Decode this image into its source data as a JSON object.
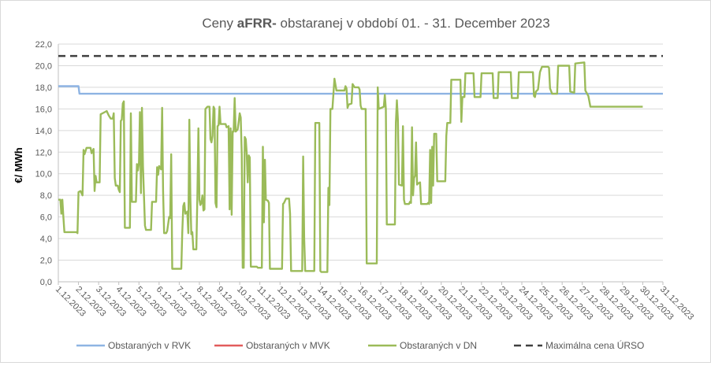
{
  "chart_data": {
    "type": "line",
    "title_prefix": "Ceny ",
    "title_bold": "aFRR-",
    "title_suffix": " obstaranej v období 01. - 31. December 2023",
    "ylabel": "€/ MWh",
    "xlabel": "",
    "ylim": [
      0,
      22
    ],
    "ytick_step": 2,
    "y_tick_labels": [
      "0,0",
      "2,0",
      "4,0",
      "6,0",
      "8,0",
      "10,0",
      "12,0",
      "14,0",
      "16,0",
      "18,0",
      "20,0",
      "22,0"
    ],
    "x_tick_labels": [
      "1.12.2023",
      "2.12.2023",
      "3.12.2023",
      "4.12.2023",
      "5.12.2023",
      "6.12.2023",
      "7.12.2023",
      "8.12.2023",
      "9.12.2023",
      "10.12.2023",
      "11.12.2023",
      "12.12.2023",
      "13.12.2023",
      "14.12.2023",
      "15.12.2023",
      "16.12.2023",
      "17.12.2023",
      "18.12.2023",
      "19.12.2023",
      "20.12.2023",
      "21.12.2023",
      "22.12.2023",
      "23.12.2023",
      "24.12.2023",
      "25.12.2023",
      "26.12.2023",
      "27.12.2023",
      "28.12.2023",
      "29.12.2023",
      "30.12.2023",
      "31.12.2023"
    ],
    "x_range_days": [
      0,
      30
    ],
    "grid": true,
    "legend_position": "bottom",
    "series": [
      {
        "name": "Obstaraných v RVK",
        "color": "#8eb4e3",
        "style": "solid",
        "points": [
          [
            0,
            18.1
          ],
          [
            1.0,
            18.1
          ],
          [
            1.05,
            17.4
          ],
          [
            30,
            17.4
          ]
        ]
      },
      {
        "name": "Obstaraných v MVK",
        "color": "#e25c5c",
        "style": "solid",
        "points": []
      },
      {
        "name": "Obstaraných v DN",
        "color": "#9bbb59",
        "style": "solid",
        "points": [
          [
            0,
            7.6
          ],
          [
            0.1,
            7.6
          ],
          [
            0.15,
            6.3
          ],
          [
            0.2,
            7.6
          ],
          [
            0.25,
            6.0
          ],
          [
            0.3,
            4.6
          ],
          [
            0.9,
            4.6
          ],
          [
            0.95,
            4.5
          ],
          [
            1.0,
            8.3
          ],
          [
            1.1,
            8.4
          ],
          [
            1.2,
            8.0
          ],
          [
            1.25,
            12.2
          ],
          [
            1.3,
            11.8
          ],
          [
            1.4,
            12.4
          ],
          [
            1.6,
            12.4
          ],
          [
            1.65,
            11.9
          ],
          [
            1.75,
            12.3
          ],
          [
            1.8,
            8.4
          ],
          [
            1.85,
            9.8
          ],
          [
            1.9,
            9.2
          ],
          [
            2.05,
            9.2
          ],
          [
            2.1,
            15.5
          ],
          [
            2.3,
            15.7
          ],
          [
            2.4,
            15.8
          ],
          [
            2.5,
            15.4
          ],
          [
            2.6,
            15.1
          ],
          [
            2.7,
            15.1
          ],
          [
            2.75,
            15.6
          ],
          [
            2.8,
            9.6
          ],
          [
            2.85,
            8.9
          ],
          [
            2.95,
            8.9
          ],
          [
            3.0,
            8.5
          ],
          [
            3.05,
            8.3
          ],
          [
            3.1,
            14.9
          ],
          [
            3.15,
            15.0
          ],
          [
            3.2,
            16.5
          ],
          [
            3.25,
            16.7
          ],
          [
            3.3,
            5.0
          ],
          [
            3.55,
            5.0
          ],
          [
            3.6,
            15.6
          ],
          [
            3.65,
            7.4
          ],
          [
            3.85,
            7.4
          ],
          [
            3.9,
            10.9
          ],
          [
            3.95,
            10.3
          ],
          [
            4.0,
            11.0
          ],
          [
            4.05,
            15.7
          ],
          [
            4.1,
            8.2
          ],
          [
            4.15,
            16.1
          ],
          [
            4.2,
            10.7
          ],
          [
            4.3,
            5.2
          ],
          [
            4.35,
            4.8
          ],
          [
            4.6,
            4.8
          ],
          [
            4.65,
            7.4
          ],
          [
            4.85,
            7.4
          ],
          [
            4.9,
            10.6
          ],
          [
            4.95,
            9.9
          ],
          [
            5.0,
            10.7
          ],
          [
            5.05,
            10.6
          ],
          [
            5.1,
            10.4
          ],
          [
            5.15,
            16.1
          ],
          [
            5.2,
            8.4
          ],
          [
            5.25,
            4.5
          ],
          [
            5.35,
            4.5
          ],
          [
            5.4,
            4.7
          ],
          [
            5.5,
            6.0
          ],
          [
            5.55,
            5.9
          ],
          [
            5.6,
            11.8
          ],
          [
            5.65,
            1.2
          ],
          [
            6.1,
            1.2
          ],
          [
            6.15,
            4.5
          ],
          [
            6.2,
            7.0
          ],
          [
            6.25,
            7.3
          ],
          [
            6.3,
            6.3
          ],
          [
            6.4,
            6.5
          ],
          [
            6.45,
            4.5
          ],
          [
            6.5,
            15.0
          ],
          [
            6.55,
            7.8
          ],
          [
            6.6,
            4.4
          ],
          [
            6.65,
            4.6
          ],
          [
            6.7,
            3.0
          ],
          [
            6.85,
            3.0
          ],
          [
            6.9,
            8.0
          ],
          [
            6.95,
            14.2
          ],
          [
            7.0,
            7.6
          ],
          [
            7.05,
            7.1
          ],
          [
            7.1,
            7.3
          ],
          [
            7.15,
            8.0
          ],
          [
            7.2,
            6.6
          ],
          [
            7.25,
            6.7
          ],
          [
            7.3,
            16.0
          ],
          [
            7.4,
            16.2
          ],
          [
            7.5,
            16.2
          ],
          [
            7.55,
            13.2
          ],
          [
            7.6,
            12.9
          ],
          [
            7.65,
            13.5
          ],
          [
            7.7,
            16.2
          ],
          [
            7.75,
            16.0
          ],
          [
            7.8,
            7.3
          ],
          [
            7.85,
            6.9
          ],
          [
            7.9,
            14.4
          ],
          [
            7.95,
            14.5
          ],
          [
            8.0,
            16.2
          ],
          [
            8.05,
            14.6
          ],
          [
            8.3,
            14.6
          ],
          [
            8.35,
            14.3
          ],
          [
            8.45,
            14.4
          ],
          [
            8.5,
            6.7
          ],
          [
            8.55,
            14.2
          ],
          [
            8.6,
            6.2
          ],
          [
            8.65,
            13.9
          ],
          [
            8.7,
            13.9
          ],
          [
            8.75,
            17.0
          ],
          [
            8.8,
            13.9
          ],
          [
            8.9,
            14.1
          ],
          [
            8.95,
            14.8
          ],
          [
            9.0,
            15.6
          ],
          [
            9.05,
            15.2
          ],
          [
            9.1,
            11.8
          ],
          [
            9.15,
            1.3
          ],
          [
            9.2,
            1.3
          ],
          [
            9.25,
            13.4
          ],
          [
            9.3,
            13.2
          ],
          [
            9.35,
            11.9
          ],
          [
            9.4,
            9.2
          ],
          [
            9.45,
            11.7
          ],
          [
            9.5,
            11.5
          ],
          [
            9.55,
            1.4
          ],
          [
            9.85,
            1.4
          ],
          [
            9.9,
            1.3
          ],
          [
            10.1,
            1.3
          ],
          [
            10.15,
            12.5
          ],
          [
            10.2,
            5.5
          ],
          [
            10.25,
            11.3
          ],
          [
            10.3,
            7.6
          ],
          [
            10.4,
            7.5
          ],
          [
            10.45,
            7.3
          ],
          [
            10.5,
            1.2
          ],
          [
            11.1,
            1.2
          ],
          [
            11.15,
            7.2
          ],
          [
            11.2,
            7.3
          ],
          [
            11.3,
            7.7
          ],
          [
            11.45,
            7.7
          ],
          [
            11.5,
            6.3
          ],
          [
            11.55,
            1.0
          ],
          [
            12.1,
            1.0
          ],
          [
            12.15,
            11.6
          ],
          [
            12.2,
            4.0
          ],
          [
            12.25,
            1.0
          ],
          [
            12.7,
            1.0
          ],
          [
            12.75,
            14.7
          ],
          [
            12.95,
            14.7
          ],
          [
            13.0,
            1.0
          ],
          [
            13.05,
            0.9
          ],
          [
            13.35,
            0.9
          ],
          [
            13.4,
            8.7
          ],
          [
            13.45,
            7.1
          ],
          [
            13.5,
            16.0
          ],
          [
            13.6,
            16.0
          ],
          [
            13.7,
            18.8
          ],
          [
            13.8,
            17.7
          ],
          [
            14.2,
            17.7
          ],
          [
            14.25,
            18.1
          ],
          [
            14.3,
            17.9
          ],
          [
            14.35,
            16.1
          ],
          [
            14.4,
            16.4
          ],
          [
            14.55,
            16.5
          ],
          [
            14.6,
            18.3
          ],
          [
            14.7,
            18.0
          ],
          [
            14.9,
            18.0
          ],
          [
            14.95,
            17.8
          ],
          [
            15.0,
            16.3
          ],
          [
            15.05,
            16.0
          ],
          [
            15.25,
            16.0
          ],
          [
            15.3,
            1.7
          ],
          [
            15.8,
            1.7
          ],
          [
            15.85,
            18.0
          ],
          [
            15.9,
            16.0
          ],
          [
            16.15,
            16.2
          ],
          [
            16.2,
            17.3
          ],
          [
            16.25,
            16.0
          ],
          [
            16.3,
            5.3
          ],
          [
            16.7,
            5.3
          ],
          [
            16.75,
            14.7
          ],
          [
            16.8,
            16.8
          ],
          [
            16.85,
            15.0
          ],
          [
            16.9,
            9.0
          ],
          [
            17.05,
            8.9
          ],
          [
            17.1,
            14.4
          ],
          [
            17.15,
            7.6
          ],
          [
            17.2,
            7.2
          ],
          [
            17.4,
            7.2
          ],
          [
            17.45,
            7.4
          ],
          [
            17.5,
            7.3
          ],
          [
            17.55,
            14.3
          ],
          [
            17.6,
            8.0
          ],
          [
            17.65,
            9.6
          ],
          [
            17.7,
            9.8
          ],
          [
            17.75,
            12.9
          ],
          [
            17.8,
            9.0
          ],
          [
            17.85,
            9.1
          ],
          [
            17.95,
            9.2
          ],
          [
            18.0,
            7.2
          ],
          [
            18.3,
            7.2
          ],
          [
            18.35,
            7.3
          ],
          [
            18.4,
            7.2
          ],
          [
            18.45,
            12.2
          ],
          [
            18.5,
            7.3
          ],
          [
            18.55,
            12.5
          ],
          [
            18.6,
            8.9
          ],
          [
            18.65,
            13.7
          ],
          [
            18.75,
            13.7
          ],
          [
            18.8,
            9.3
          ],
          [
            19.1,
            9.3
          ],
          [
            19.2,
            9.3
          ],
          [
            19.25,
            13.5
          ],
          [
            19.3,
            14.7
          ],
          [
            19.45,
            14.7
          ],
          [
            19.5,
            18.7
          ],
          [
            19.95,
            18.7
          ],
          [
            20.0,
            14.8
          ],
          [
            20.05,
            17.1
          ],
          [
            20.15,
            17.1
          ],
          [
            20.2,
            19.3
          ],
          [
            20.6,
            19.3
          ],
          [
            20.65,
            17.1
          ],
          [
            20.95,
            17.1
          ],
          [
            21.0,
            19.3
          ],
          [
            21.55,
            19.3
          ],
          [
            21.6,
            17.0
          ],
          [
            21.8,
            17.0
          ],
          [
            21.85,
            19.4
          ],
          [
            22.45,
            19.4
          ],
          [
            22.5,
            17.0
          ],
          [
            22.8,
            17.0
          ],
          [
            22.85,
            19.4
          ],
          [
            23.55,
            19.4
          ],
          [
            23.6,
            17.2
          ],
          [
            23.65,
            17.1
          ],
          [
            23.7,
            17.6
          ],
          [
            23.8,
            17.8
          ],
          [
            23.9,
            19.4
          ],
          [
            24.0,
            19.9
          ],
          [
            24.3,
            19.9
          ],
          [
            24.35,
            19.8
          ],
          [
            24.4,
            17.9
          ],
          [
            24.5,
            17.4
          ],
          [
            24.75,
            17.4
          ],
          [
            24.8,
            20.0
          ],
          [
            25.35,
            20.0
          ],
          [
            25.4,
            17.6
          ],
          [
            25.6,
            17.5
          ],
          [
            25.65,
            20.2
          ],
          [
            26.1,
            20.3
          ],
          [
            26.15,
            17.7
          ],
          [
            26.3,
            17.2
          ],
          [
            26.4,
            16.2
          ],
          [
            29.0,
            16.2
          ]
        ]
      },
      {
        "name": "Maximálna cena ÚRSO",
        "color": "#404040",
        "style": "dashed",
        "points": [
          [
            0,
            20.9
          ],
          [
            30,
            20.9
          ]
        ]
      }
    ]
  }
}
